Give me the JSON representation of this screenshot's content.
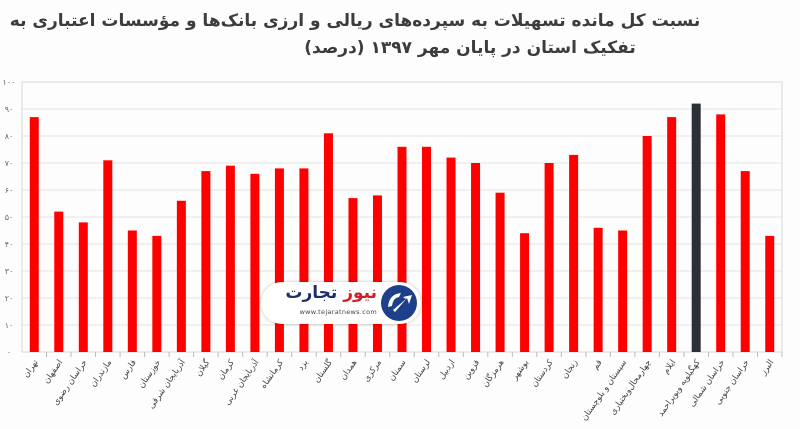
{
  "title_line1": "نسبت کل مانده تسهیلات به سپرده‌های ریالی و ارزی بانک‌ها و مؤسسات اعتباری  به",
  "title_line2": "تفکیک استان در پایان مهر ۱۳۹۷ (درصد)",
  "logo": {
    "name_part1": "تجارت",
    "name_part2": "نیوز",
    "url": "www.tejaratnews.com"
  },
  "colors": {
    "bar": "#ff0000",
    "highlight": "#2b2f36",
    "grid": "#e4e4e4",
    "axis_text": "#666666"
  },
  "chart_data": {
    "type": "bar",
    "title": "نسبت کل مانده تسهیلات به سپرده‌های ریالی و ارزی بانک‌ها و مؤسسات اعتباری  به تفکیک استان در پایان مهر ۱۳۹۷ (درصد)",
    "xlabel": "",
    "ylabel": "",
    "ylim": [
      0,
      100
    ],
    "yticks": [
      "۰",
      "۱۰",
      "۲۰",
      "۳۰",
      "۴۰",
      "۵۰",
      "۶۰",
      "۷۰",
      "۸۰",
      "۹۰",
      "۱۰۰"
    ],
    "grid": true,
    "highlight_category": "کهگیلویه وبویراحمد",
    "categories": [
      "تهران",
      "اصفهان",
      "خراسان رضوی",
      "مازندران",
      "فارس",
      "خوزستان",
      "آذربایجان شرقی",
      "گیلان",
      "کرمان",
      "آذربایجان غربی",
      "کرمانشاه",
      "یزد",
      "گلستان",
      "همدان",
      "مرکزی",
      "سمنان",
      "لرستان",
      "اردبیل",
      "قزوین",
      "هرمزگان",
      "بوشهر",
      "کردستان",
      "زنجان",
      "قم",
      "سیستان و بلوچستان",
      "چهارمحال‌وبختیاری",
      "ایلام",
      "کهگیلویه وبویراحمد",
      "خراسان شمالی",
      "خراسان جنوبی",
      "البرز"
    ],
    "values": [
      87,
      52,
      48,
      71,
      45,
      43,
      56,
      67,
      69,
      66,
      68,
      68,
      81,
      57,
      58,
      76,
      76,
      72,
      70,
      59,
      44,
      70,
      73,
      46,
      45,
      80,
      87,
      92,
      88,
      67,
      43
    ]
  }
}
